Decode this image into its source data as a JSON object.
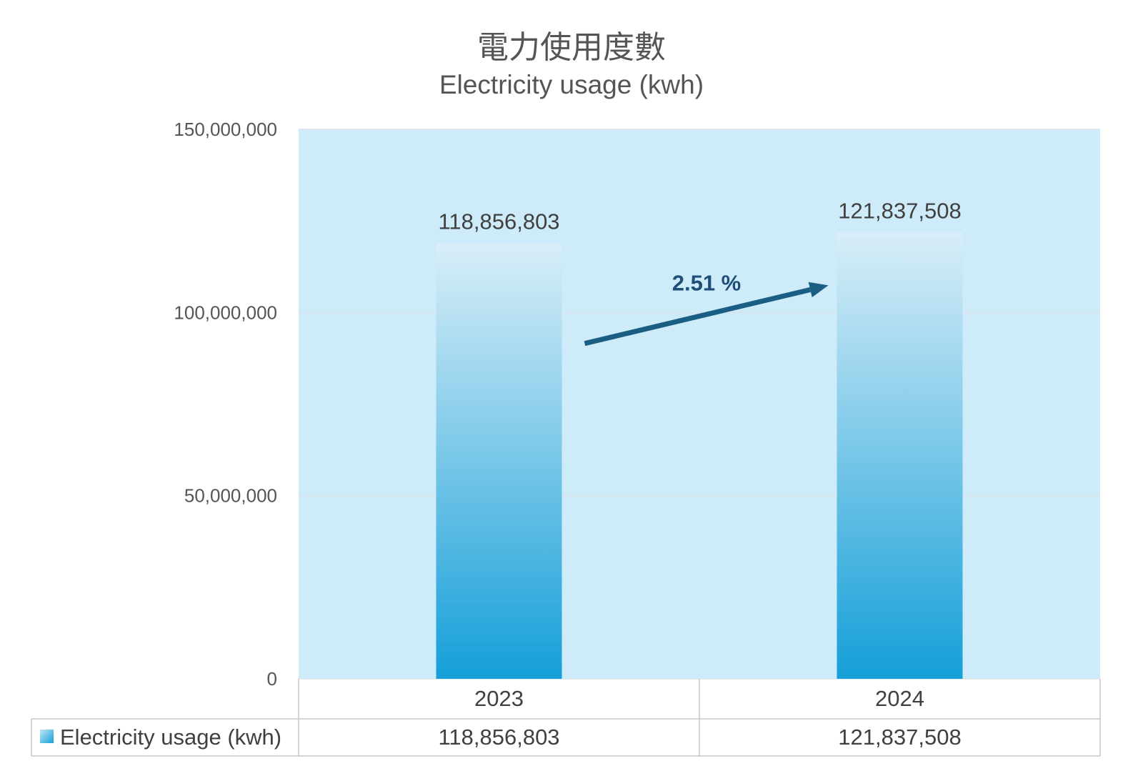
{
  "chart_data": {
    "type": "bar",
    "title": "電力使用度數",
    "subtitle": "Electricity usage (kwh)",
    "categories": [
      "2023",
      "2024"
    ],
    "series": [
      {
        "name": "Electricity usage (kwh)",
        "values": [
          118856803,
          121837508
        ]
      }
    ],
    "data_labels": [
      "118,856,803",
      "121,837,508"
    ],
    "table_values": [
      "118,856,803",
      "121,837,508"
    ],
    "y_ticks": [
      "0",
      "50,000,000",
      "100,000,000",
      "150,000,000"
    ],
    "ylim": [
      0,
      150000000
    ],
    "grid": true,
    "legend": "data-table-left",
    "annotation": "2.51 %",
    "colors": {
      "plot_background": "#cdebf8",
      "bar_top": "#d9eef8",
      "bar_bottom": "#159fd8",
      "arrow": "#1b5e84",
      "gridline": "#dde3e8",
      "table_border": "#c9c9c9"
    }
  }
}
